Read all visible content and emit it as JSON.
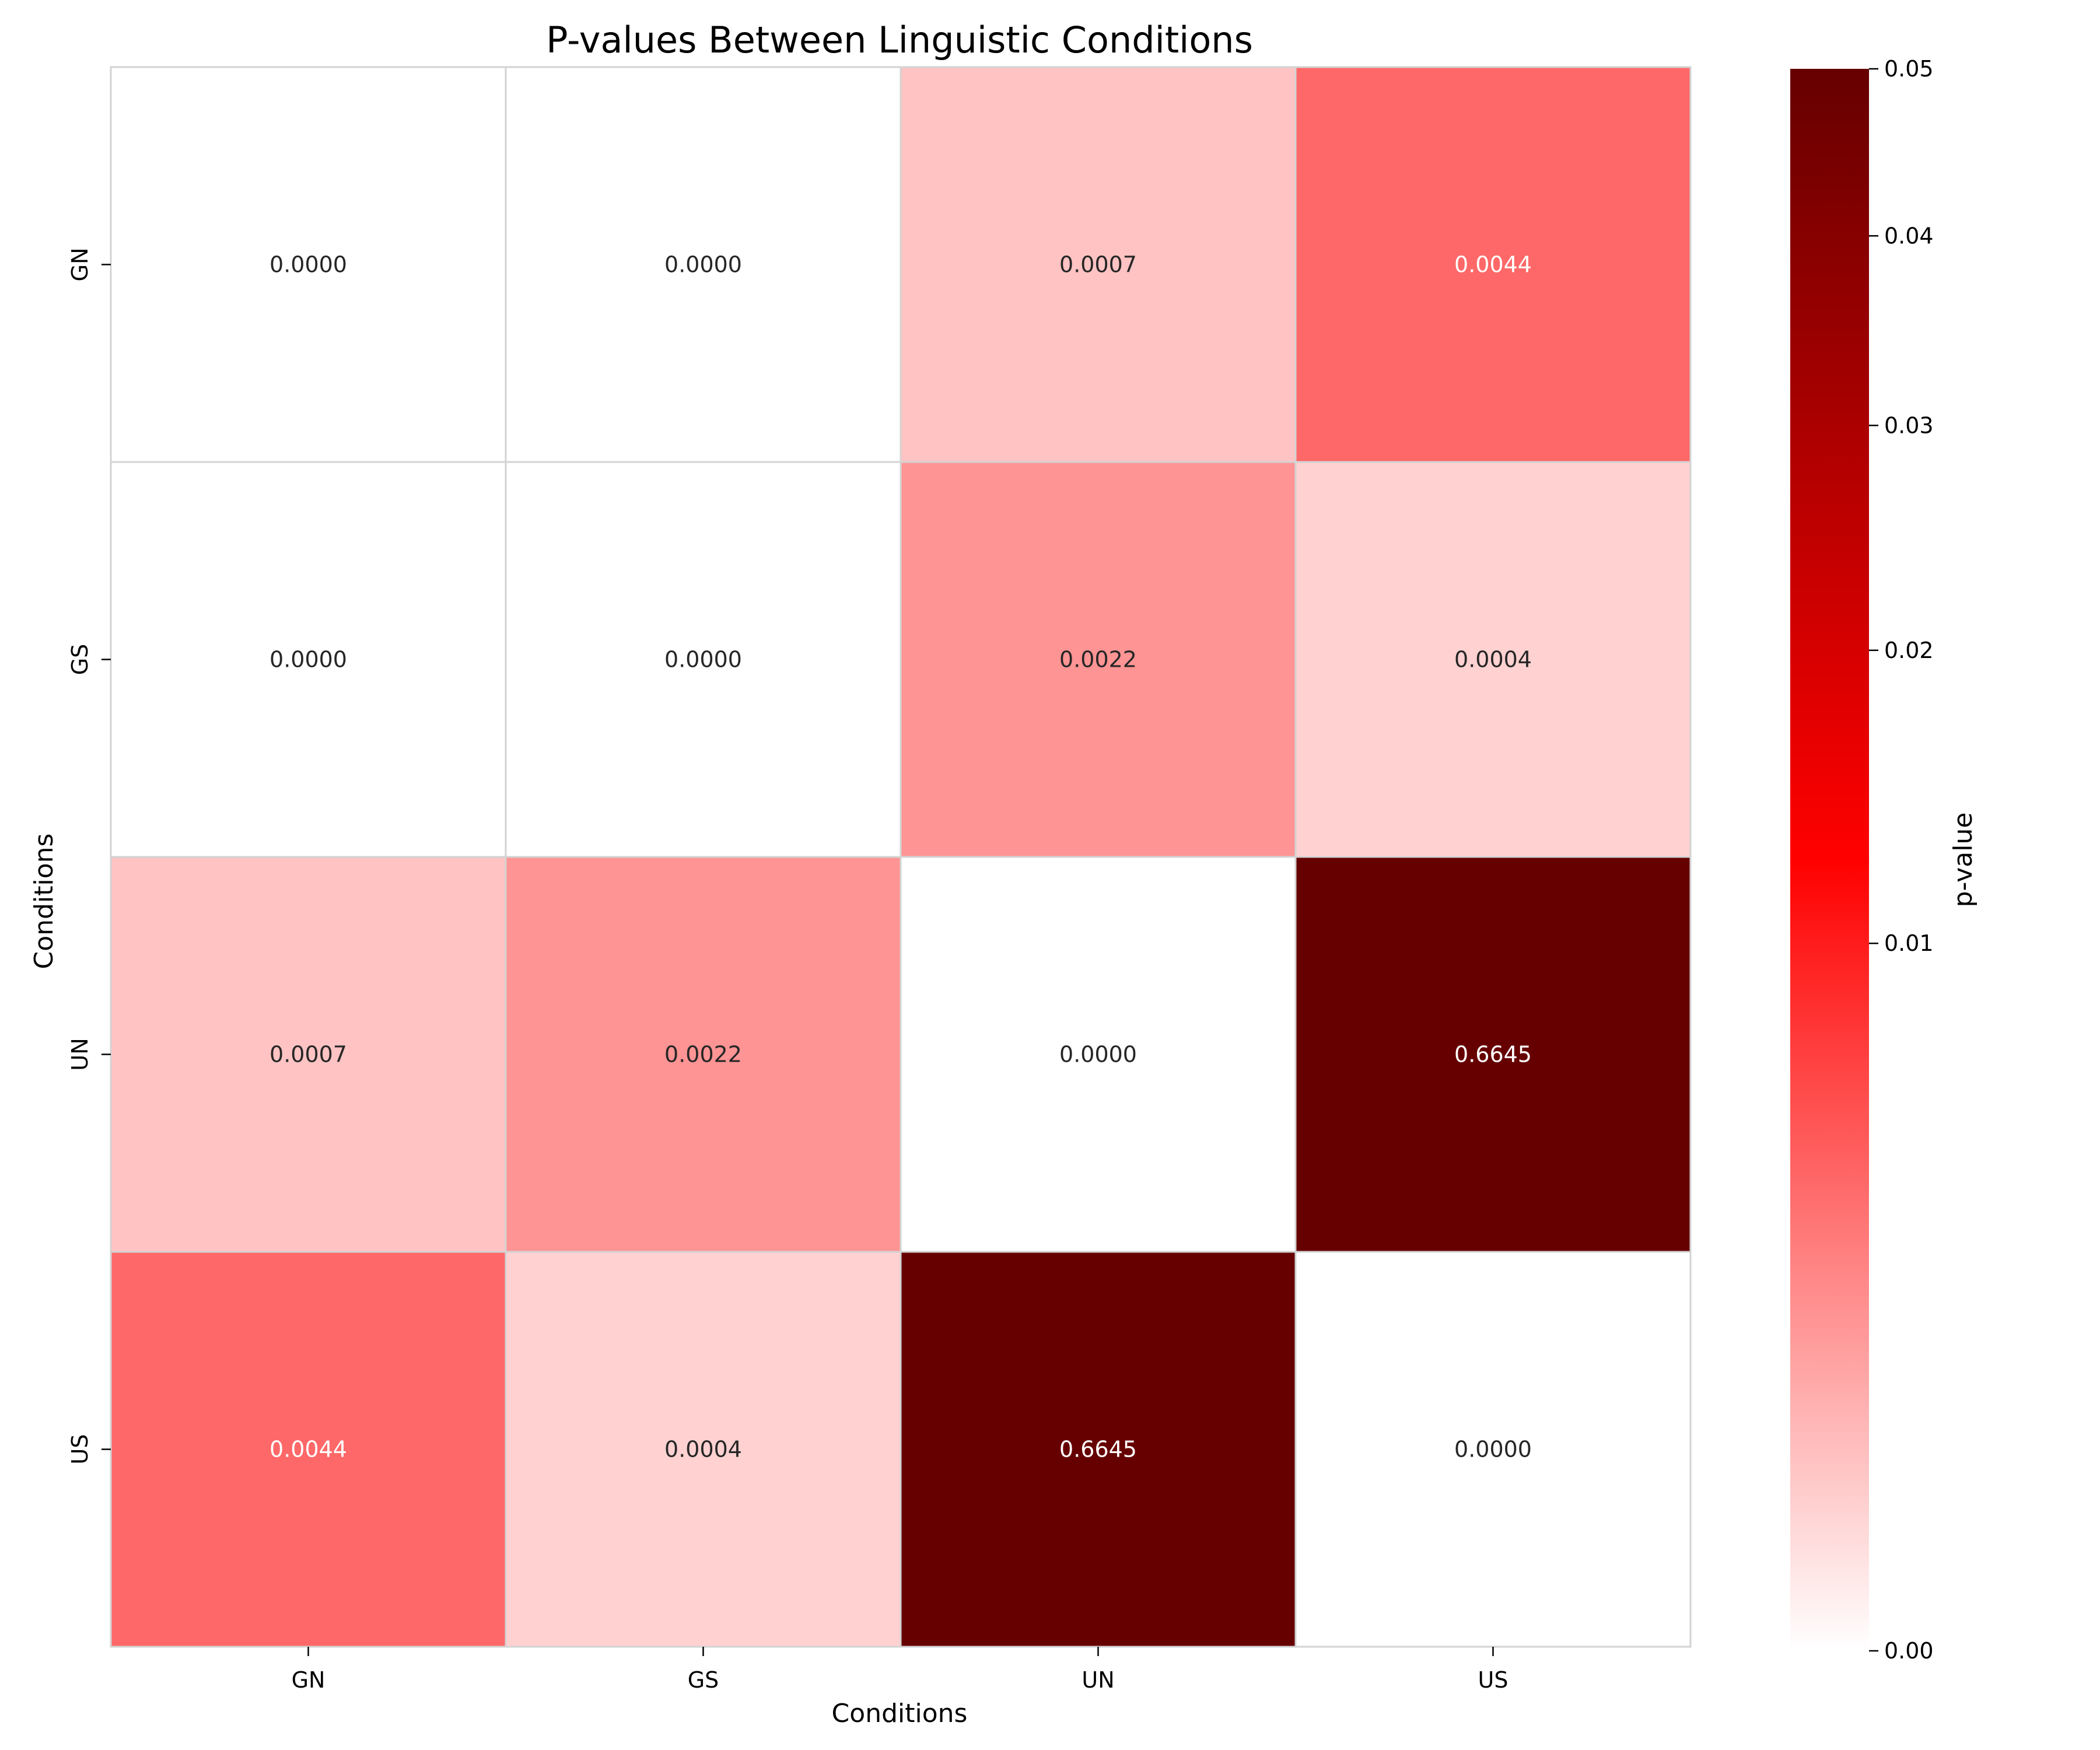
{
  "chart_data": {
    "type": "heatmap",
    "title": "P-values Between Linguistic Conditions",
    "xlabel": "Conditions",
    "ylabel": "Conditions",
    "x_categories": [
      "GN",
      "GS",
      "UN",
      "US"
    ],
    "y_categories": [
      "GN",
      "GS",
      "UN",
      "US"
    ],
    "values": [
      [
        0.0,
        0.0,
        0.0007,
        0.0044
      ],
      [
        0.0,
        0.0,
        0.0022,
        0.0004
      ],
      [
        0.0007,
        0.0022,
        0.0,
        0.6645
      ],
      [
        0.0044,
        0.0004,
        0.6645,
        0.0
      ]
    ],
    "value_labels": [
      [
        "0.0000",
        "0.0000",
        "0.0007",
        "0.0044"
      ],
      [
        "0.0000",
        "0.0000",
        "0.0022",
        "0.0004"
      ],
      [
        "0.0007",
        "0.0022",
        "0.0000",
        "0.6645"
      ],
      [
        "0.0044",
        "0.0004",
        "0.6645",
        "0.0000"
      ]
    ],
    "colorbar": {
      "label": "p-value",
      "range": [
        0,
        0.05
      ],
      "scale": "power",
      "ticks": [
        0.0,
        0.01,
        0.02,
        0.03,
        0.04,
        0.05
      ],
      "tick_labels": [
        "0.00",
        "0.01",
        "0.02",
        "0.03",
        "0.04",
        "0.05"
      ],
      "colormap": [
        "#ffffff",
        "#ff0000",
        "#660000"
      ]
    },
    "grid": false,
    "legend": "colorbar-right"
  }
}
